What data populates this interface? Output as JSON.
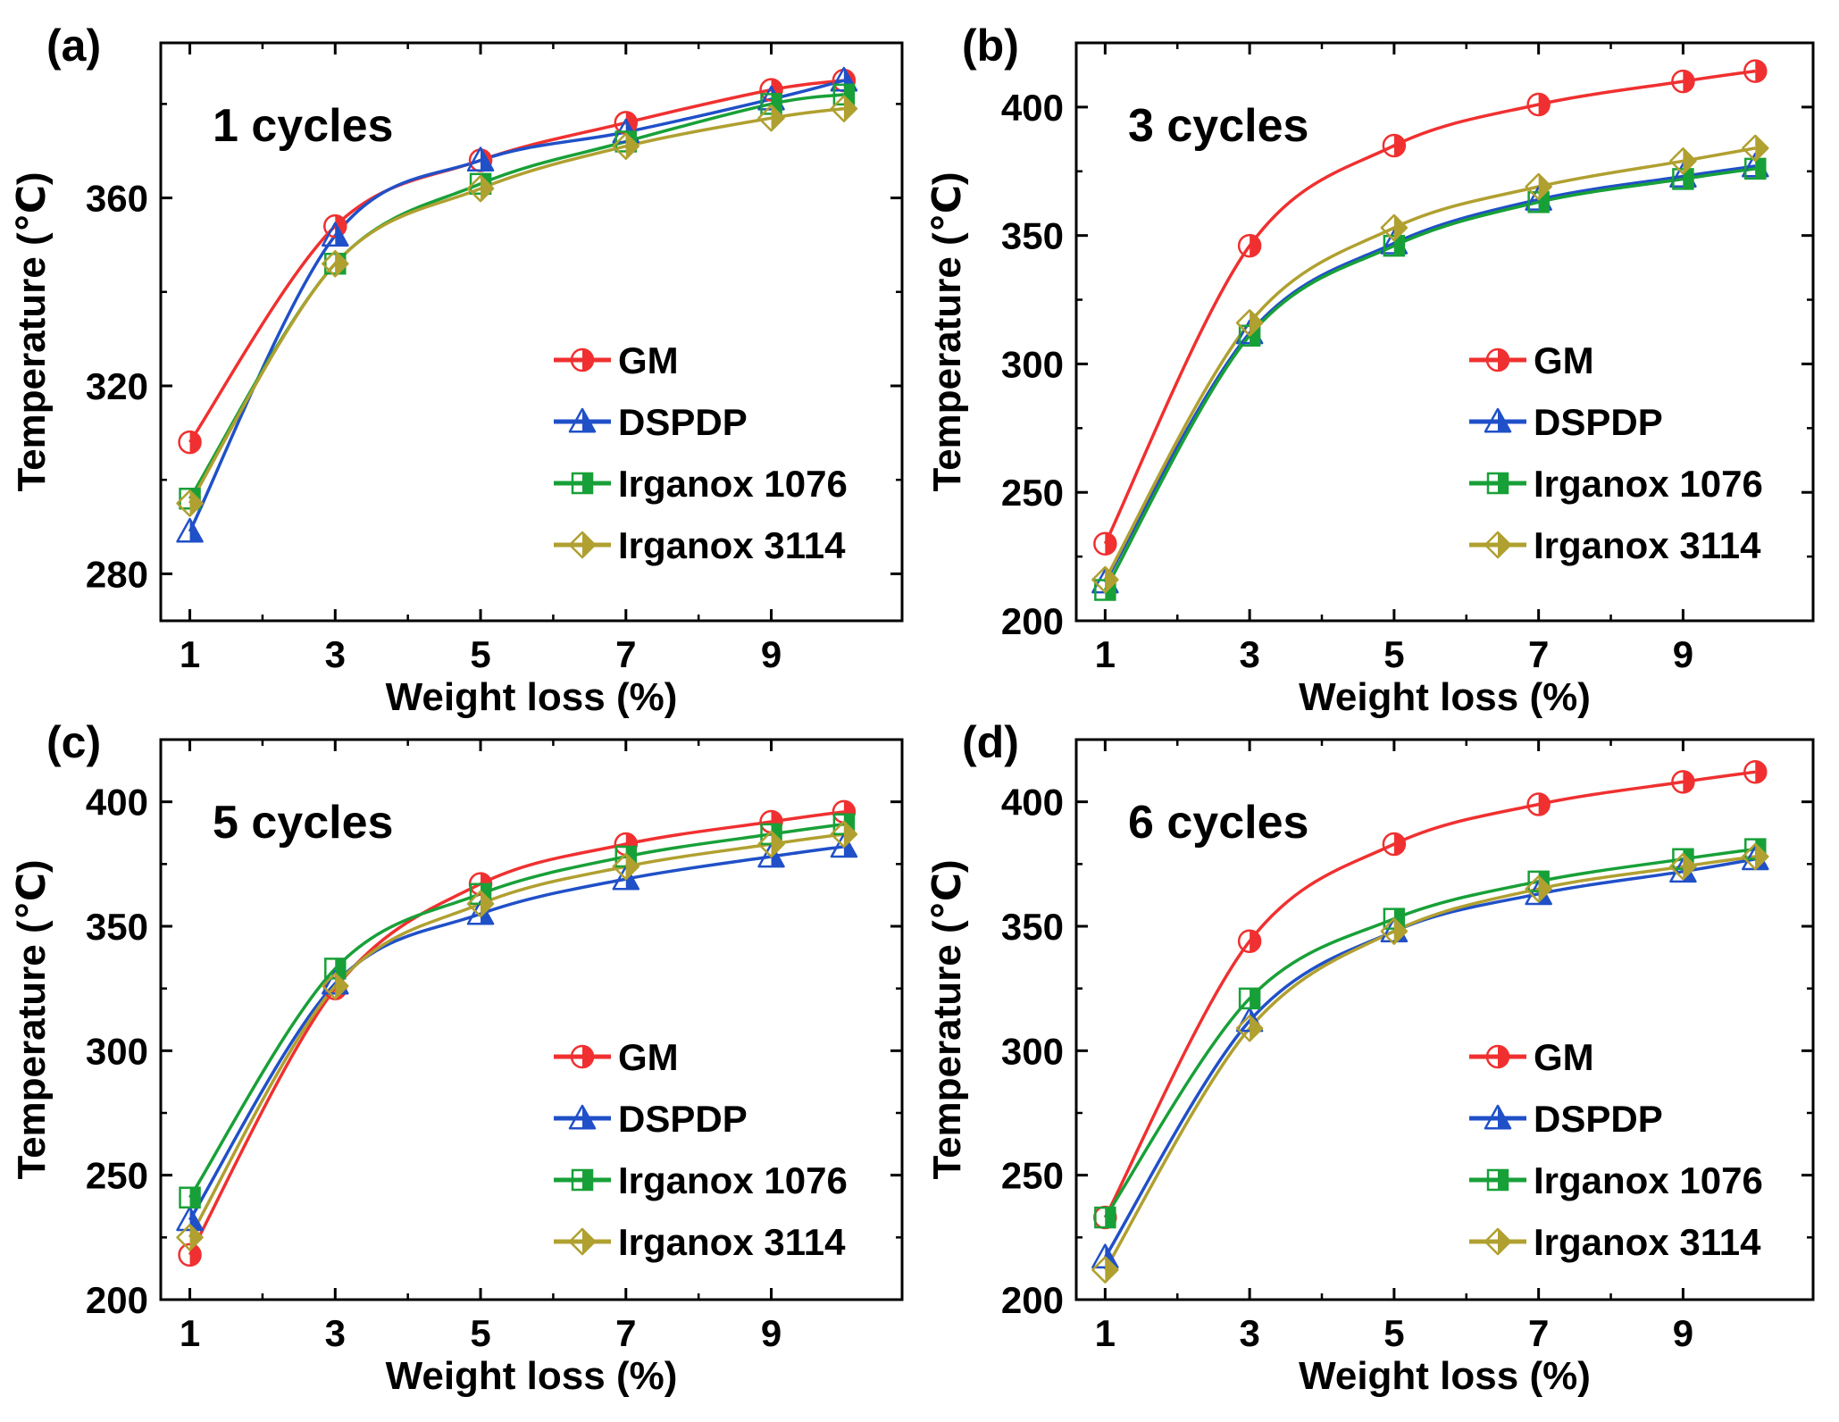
{
  "chart_data": [
    {
      "type": "line",
      "panel_label": "(a)",
      "title": "1 cycles",
      "xlabel": "Weight loss (%)",
      "ylabel": "Temperature (℃)",
      "xlim": [
        0.6,
        10.8
      ],
      "ylim": [
        270,
        393
      ],
      "xticks": [
        1,
        3,
        5,
        7,
        9
      ],
      "xtick_labels": [
        "1",
        "3",
        "5",
        "7",
        "9"
      ],
      "yticks": [
        280,
        320,
        360
      ],
      "ytick_labels": [
        "280",
        "320",
        "360"
      ],
      "legend_position": "lower-right",
      "x": [
        1,
        3,
        5,
        7,
        9,
        10
      ],
      "series": [
        {
          "name": "GM",
          "color": "#f03030",
          "marker": "circle",
          "values": [
            308,
            354,
            368,
            376,
            383,
            385
          ]
        },
        {
          "name": "DSPDP",
          "color": "#2050c8",
          "marker": "triangle",
          "values": [
            289,
            352,
            368,
            374,
            381,
            385
          ]
        },
        {
          "name": "Irganox 1076",
          "color": "#18a038",
          "marker": "square",
          "values": [
            296,
            346,
            363,
            372,
            380,
            382
          ]
        },
        {
          "name": "Irganox 3114",
          "color": "#b0a030",
          "marker": "diamond",
          "values": [
            295,
            346,
            362,
            371,
            377,
            379
          ]
        }
      ]
    },
    {
      "type": "line",
      "panel_label": "(b)",
      "title": "3 cycles",
      "xlabel": "Weight loss (%)",
      "ylabel": "Temperature (℃)",
      "xlim": [
        0.6,
        10.8
      ],
      "ylim": [
        200,
        425
      ],
      "xticks": [
        1,
        3,
        5,
        7,
        9
      ],
      "xtick_labels": [
        "1",
        "3",
        "5",
        "7",
        "9"
      ],
      "yticks": [
        200,
        250,
        300,
        350,
        400
      ],
      "ytick_labels": [
        "200",
        "250",
        "300",
        "350",
        "400"
      ],
      "legend_position": "lower-right",
      "x": [
        1,
        3,
        5,
        7,
        9,
        10
      ],
      "series": [
        {
          "name": "GM",
          "color": "#f03030",
          "marker": "circle",
          "values": [
            230,
            346,
            385,
            401,
            410,
            414
          ]
        },
        {
          "name": "DSPDP",
          "color": "#2050c8",
          "marker": "triangle",
          "values": [
            215,
            312,
            347,
            364,
            373,
            377
          ]
        },
        {
          "name": "Irganox 1076",
          "color": "#18a038",
          "marker": "square",
          "values": [
            212,
            311,
            346,
            363,
            372,
            376
          ]
        },
        {
          "name": "Irganox 3114",
          "color": "#b0a030",
          "marker": "diamond",
          "values": [
            216,
            316,
            353,
            369,
            379,
            384
          ]
        }
      ]
    },
    {
      "type": "line",
      "panel_label": "(c)",
      "title": "5 cycles",
      "xlabel": "Weight loss (%)",
      "ylabel": "Temperature (℃)",
      "xlim": [
        0.6,
        10.8
      ],
      "ylim": [
        200,
        425
      ],
      "xticks": [
        1,
        3,
        5,
        7,
        9
      ],
      "xtick_labels": [
        "1",
        "3",
        "5",
        "7",
        "9"
      ],
      "yticks": [
        200,
        250,
        300,
        350,
        400
      ],
      "ytick_labels": [
        "200",
        "250",
        "300",
        "350",
        "400"
      ],
      "legend_position": "lower-right",
      "x": [
        1,
        3,
        5,
        7,
        9,
        10
      ],
      "series": [
        {
          "name": "GM",
          "color": "#f03030",
          "marker": "circle",
          "values": [
            218,
            325,
            367,
            383,
            392,
            396
          ]
        },
        {
          "name": "DSPDP",
          "color": "#2050c8",
          "marker": "triangle",
          "values": [
            232,
            327,
            355,
            369,
            378,
            382
          ]
        },
        {
          "name": "Irganox 1076",
          "color": "#18a038",
          "marker": "square",
          "values": [
            241,
            333,
            363,
            378,
            387,
            391
          ]
        },
        {
          "name": "Irganox 3114",
          "color": "#b0a030",
          "marker": "diamond",
          "values": [
            225,
            326,
            359,
            374,
            383,
            387
          ]
        }
      ]
    },
    {
      "type": "line",
      "panel_label": "(d)",
      "title": "6 cycles",
      "xlabel": "Weight loss (%)",
      "ylabel": "Temperature (℃)",
      "xlim": [
        0.6,
        10.8
      ],
      "ylim": [
        200,
        425
      ],
      "xticks": [
        1,
        3,
        5,
        7,
        9
      ],
      "xtick_labels": [
        "1",
        "3",
        "5",
        "7",
        "9"
      ],
      "yticks": [
        200,
        250,
        300,
        350,
        400
      ],
      "ytick_labels": [
        "200",
        "250",
        "300",
        "350",
        "400"
      ],
      "legend_position": "lower-right",
      "x": [
        1,
        3,
        5,
        7,
        9,
        10
      ],
      "series": [
        {
          "name": "GM",
          "color": "#f03030",
          "marker": "circle",
          "values": [
            233,
            344,
            383,
            399,
            408,
            412
          ]
        },
        {
          "name": "DSPDP",
          "color": "#2050c8",
          "marker": "triangle",
          "values": [
            217,
            312,
            348,
            363,
            372,
            377
          ]
        },
        {
          "name": "Irganox 1076",
          "color": "#18a038",
          "marker": "square",
          "values": [
            233,
            321,
            353,
            368,
            377,
            381
          ]
        },
        {
          "name": "Irganox 3114",
          "color": "#b0a030",
          "marker": "diamond",
          "values": [
            212,
            309,
            348,
            365,
            374,
            378
          ]
        }
      ]
    }
  ]
}
